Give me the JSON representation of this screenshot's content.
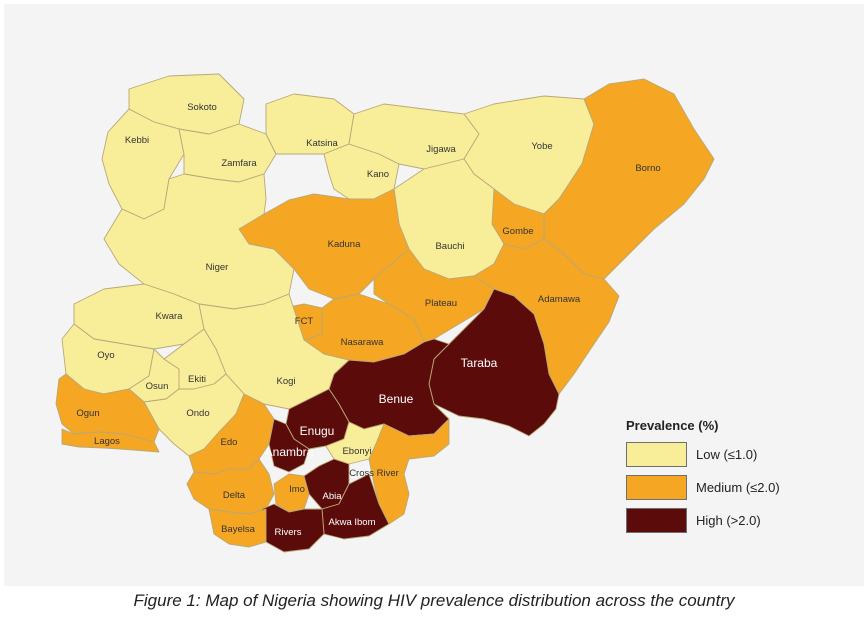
{
  "colors": {
    "low": "#f8ee9a",
    "medium": "#f5a623",
    "high": "#5c0b0b",
    "border": "#b9a877",
    "panel": "#f4f4f4"
  },
  "legend": {
    "title": "Prevalence (%)",
    "items": [
      {
        "label": "Low (≤1.0)",
        "level": "low"
      },
      {
        "label": "Medium (≤2.0)",
        "level": "medium"
      },
      {
        "label": "High (>2.0)",
        "level": "high"
      }
    ]
  },
  "states": [
    {
      "name": "Sokoto",
      "level": "low"
    },
    {
      "name": "Kebbi",
      "level": "low"
    },
    {
      "name": "Zamfara",
      "level": "low"
    },
    {
      "name": "Katsina",
      "level": "low"
    },
    {
      "name": "Kano",
      "level": "low"
    },
    {
      "name": "Jigawa",
      "level": "low"
    },
    {
      "name": "Yobe",
      "level": "low"
    },
    {
      "name": "Borno",
      "level": "medium"
    },
    {
      "name": "Gombe",
      "level": "medium"
    },
    {
      "name": "Bauchi",
      "level": "low"
    },
    {
      "name": "Kaduna",
      "level": "medium"
    },
    {
      "name": "Niger",
      "level": "low"
    },
    {
      "name": "Kwara",
      "level": "low"
    },
    {
      "name": "FCT",
      "level": "medium"
    },
    {
      "name": "Nasarawa",
      "level": "medium"
    },
    {
      "name": "Plateau",
      "level": "medium"
    },
    {
      "name": "Adamawa",
      "level": "medium"
    },
    {
      "name": "Taraba",
      "level": "high"
    },
    {
      "name": "Benue",
      "level": "high"
    },
    {
      "name": "Kogi",
      "level": "low"
    },
    {
      "name": "Oyo",
      "level": "low"
    },
    {
      "name": "Osun",
      "level": "low"
    },
    {
      "name": "Ekiti",
      "level": "low"
    },
    {
      "name": "Ondo",
      "level": "low"
    },
    {
      "name": "Ogun",
      "level": "medium"
    },
    {
      "name": "Lagos",
      "level": "medium"
    },
    {
      "name": "Edo",
      "level": "medium"
    },
    {
      "name": "Enugu",
      "level": "high"
    },
    {
      "name": "Anambra",
      "level": "high"
    },
    {
      "name": "Ebonyi",
      "level": "low"
    },
    {
      "name": "Cross River",
      "level": "medium"
    },
    {
      "name": "Delta",
      "level": "medium"
    },
    {
      "name": "Imo",
      "level": "medium"
    },
    {
      "name": "Abia",
      "level": "high"
    },
    {
      "name": "Akwa Ibom",
      "level": "high"
    },
    {
      "name": "Rivers",
      "level": "high"
    },
    {
      "name": "Bayelsa",
      "level": "medium"
    }
  ],
  "caption": "Figure 1: Map of Nigeria showing HIV prevalence distribution across the country"
}
